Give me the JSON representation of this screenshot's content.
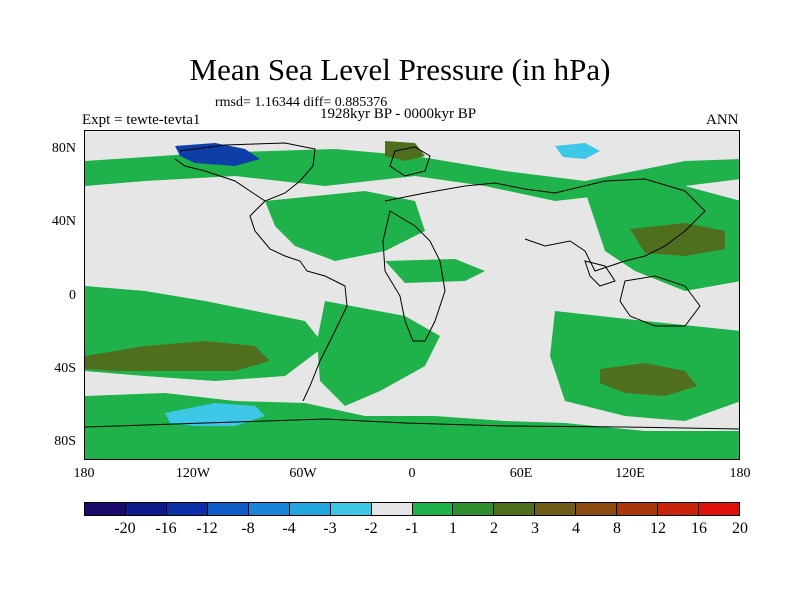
{
  "header": {
    "title": "Mean Sea Level Pressure (in hPa)",
    "stats": "rmsd= 1.16344 diff= 0.885376",
    "period": "1928kyr BP - 0000kyr BP",
    "experiment": "Expt = tewte-tevta1",
    "season": "ANN"
  },
  "axes": {
    "lat_ticks": [
      "80N",
      "40N",
      "0",
      "40S",
      "80S"
    ],
    "lon_ticks": [
      "180",
      "120W",
      "60W",
      "0",
      "60E",
      "120E",
      "180"
    ]
  },
  "colorbar": {
    "colors": [
      "#1a0a6b",
      "#0c1a8a",
      "#0a2fa8",
      "#0e5cc8",
      "#1a84d8",
      "#22a6e0",
      "#3cc8e6",
      "#e6e6e6",
      "#1fb24a",
      "#2f8f2f",
      "#4f6f1f",
      "#6e5c18",
      "#8a4a10",
      "#a8380c",
      "#c8220a",
      "#e0100a"
    ],
    "labels": [
      "-20",
      "-16",
      "-12",
      "-8",
      "-4",
      "-3",
      "-2",
      "-1",
      "1",
      "2",
      "3",
      "4",
      "8",
      "12",
      "16",
      "20"
    ]
  },
  "map_colors": {
    "ocean_neutral": "#e6e6e6",
    "positive_light": "#1fb24a",
    "positive_mid": "#4f6f1f",
    "negative_light": "#3cc8e6",
    "negative_deep": "#0e3fa8",
    "coastline": "#000000"
  }
}
